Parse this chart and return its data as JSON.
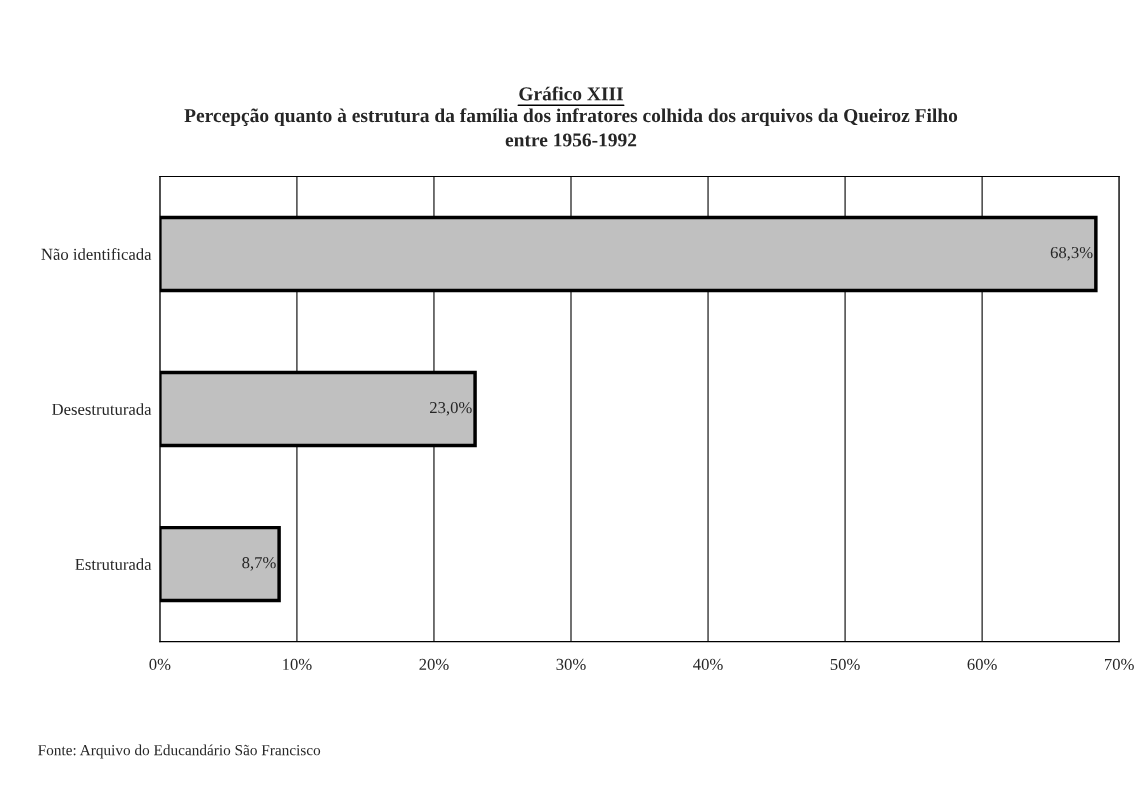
{
  "chart_data": {
    "type": "bar",
    "orientation": "horizontal",
    "title": "Gráfico XIII",
    "subtitle": "Percepção quanto à estrutura da família dos infratores colhida dos arquivos da Queiroz Filho\nentre 1956-1992",
    "categories": [
      "Não identificada",
      "Desestruturada",
      "Estruturada"
    ],
    "values": [
      68.3,
      23.0,
      8.7
    ],
    "value_labels": [
      "68,3%",
      "23,0%",
      "8,7%"
    ],
    "color": "#c0c0c0",
    "xlim": [
      0,
      70
    ],
    "xticks": [
      {
        "value": 0,
        "label": "0%"
      },
      {
        "value": 10,
        "label": "10%"
      },
      {
        "value": 20,
        "label": "20%"
      },
      {
        "value": 30,
        "label": "30%"
      },
      {
        "value": 40,
        "label": "40%"
      },
      {
        "value": 50,
        "label": "50%"
      },
      {
        "value": 60,
        "label": "60%"
      },
      {
        "value": 70,
        "label": "70%"
      }
    ],
    "grid": "x",
    "annotations": [
      "Fonte: Arquivo do Educandário São Francisco"
    ]
  }
}
